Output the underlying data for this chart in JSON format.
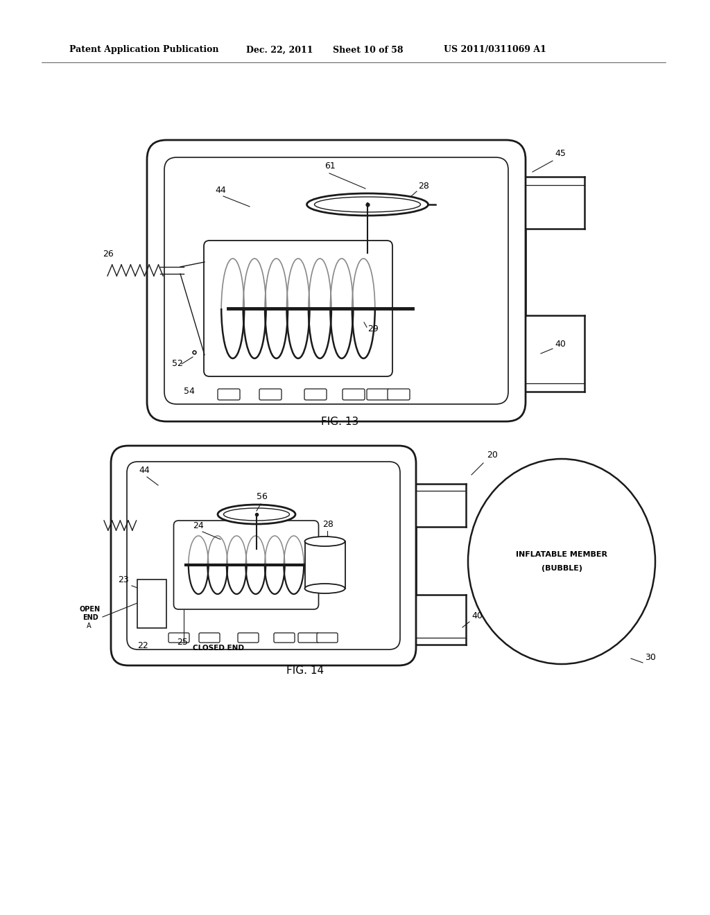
{
  "background_color": "#ffffff",
  "header_text": "Patent Application Publication",
  "header_date": "Dec. 22, 2011",
  "header_sheet": "Sheet 10 of 58",
  "header_patent": "US 2011/0311069 A1",
  "fig13_label": "FIG. 13",
  "fig14_label": "FIG. 14",
  "line_color": "#1a1a1a",
  "text_color": "#000000",
  "label_fontsize": 9,
  "header_fontsize": 9,
  "fig_label_fontsize": 11
}
